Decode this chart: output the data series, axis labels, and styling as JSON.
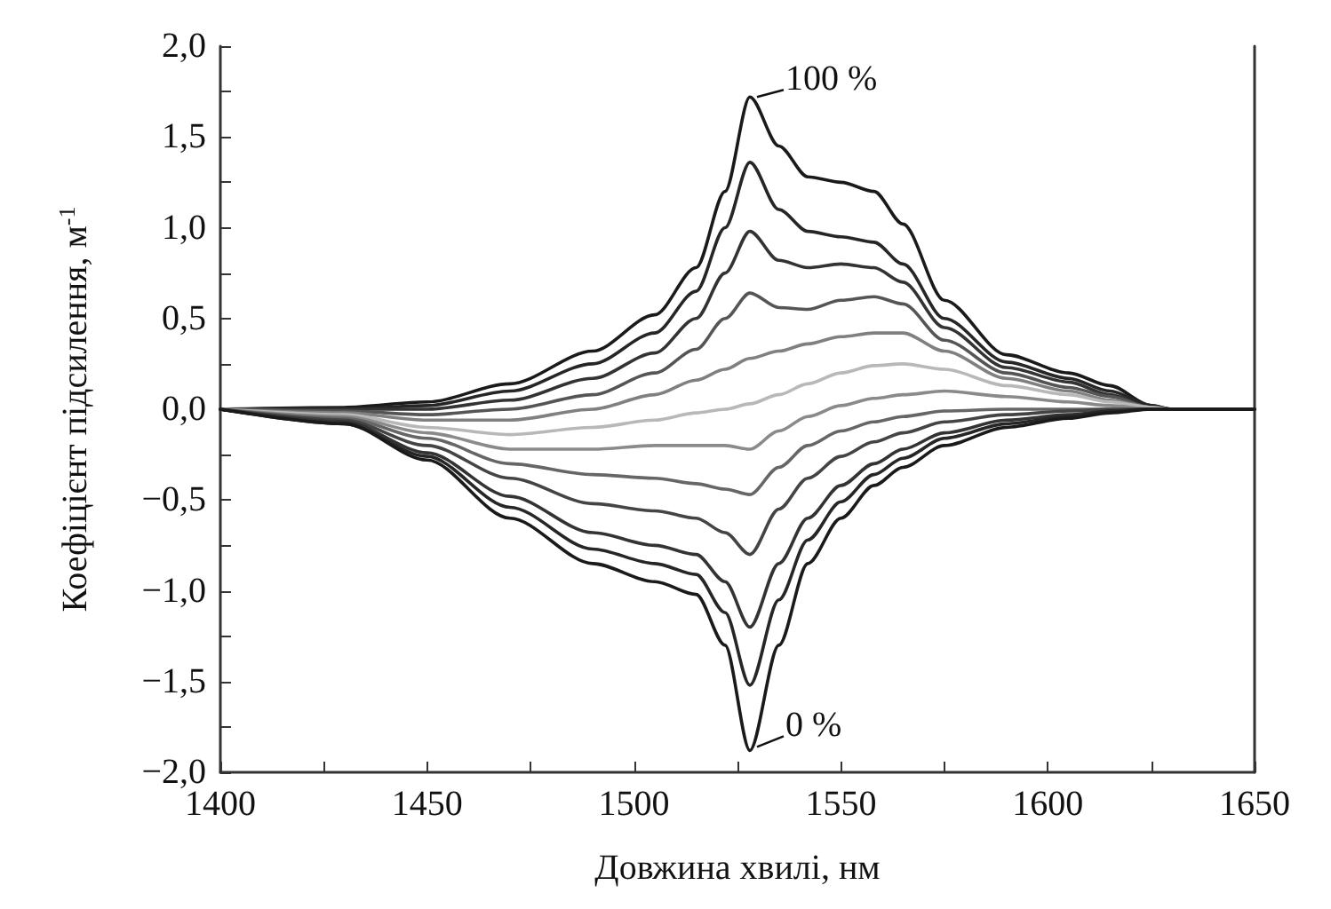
{
  "chart_data": {
    "type": "line",
    "xlabel": "Довжина хвилі, нм",
    "ylabel": "Коефіцієнт підсилення, м$^{-1}$",
    "x": [
      1400,
      1430,
      1450,
      1470,
      1490,
      1505,
      1515,
      1522,
      1528,
      1535,
      1542,
      1550,
      1558,
      1565,
      1575,
      1590,
      1605,
      1615,
      1625,
      1630,
      1650
    ],
    "series": [
      {
        "color": "#1a1a1a",
        "values": [
          0,
          0.01,
          0.04,
          0.14,
          0.32,
          0.52,
          0.78,
          1.2,
          1.72,
          1.45,
          1.28,
          1.25,
          1.2,
          1.02,
          0.6,
          0.3,
          0.2,
          0.13,
          0.02,
          0,
          0
        ]
      },
      {
        "color": "#262626",
        "values": [
          0,
          0,
          0.02,
          0.1,
          0.25,
          0.42,
          0.65,
          1.0,
          1.36,
          1.1,
          0.98,
          0.95,
          0.92,
          0.8,
          0.5,
          0.26,
          0.17,
          0.1,
          0.02,
          0,
          0
        ]
      },
      {
        "color": "#333333",
        "values": [
          0,
          0,
          0,
          0.05,
          0.17,
          0.31,
          0.5,
          0.75,
          0.98,
          0.82,
          0.78,
          0.8,
          0.78,
          0.7,
          0.45,
          0.23,
          0.15,
          0.08,
          0.01,
          0,
          0
        ]
      },
      {
        "color": "#555555",
        "values": [
          0,
          -0.01,
          -0.03,
          0,
          0.08,
          0.2,
          0.33,
          0.5,
          0.64,
          0.56,
          0.55,
          0.6,
          0.62,
          0.58,
          0.38,
          0.2,
          0.12,
          0.07,
          0.01,
          0,
          0
        ]
      },
      {
        "color": "#808080",
        "values": [
          0,
          -0.02,
          -0.06,
          -0.06,
          0,
          0.08,
          0.16,
          0.22,
          0.28,
          0.32,
          0.36,
          0.4,
          0.42,
          0.42,
          0.32,
          0.17,
          0.1,
          0.05,
          0.01,
          0,
          0
        ]
      },
      {
        "color": "#b8b8b8",
        "values": [
          0,
          -0.03,
          -0.1,
          -0.14,
          -0.1,
          -0.06,
          -0.02,
          0.0,
          0.03,
          0.08,
          0.14,
          0.2,
          0.24,
          0.25,
          0.22,
          0.13,
          0.08,
          0.04,
          0.01,
          0,
          0
        ]
      },
      {
        "color": "#8a8a8a",
        "values": [
          0,
          -0.04,
          -0.13,
          -0.22,
          -0.22,
          -0.2,
          -0.2,
          -0.2,
          -0.22,
          -0.12,
          -0.04,
          0.02,
          0.06,
          0.08,
          0.1,
          0.07,
          0.04,
          0.02,
          0,
          0,
          0
        ]
      },
      {
        "color": "#666666",
        "values": [
          0,
          -0.05,
          -0.16,
          -0.3,
          -0.36,
          -0.38,
          -0.41,
          -0.44,
          -0.47,
          -0.32,
          -0.2,
          -0.12,
          -0.07,
          -0.04,
          -0.01,
          0,
          0,
          0,
          0,
          0,
          0
        ]
      },
      {
        "color": "#444444",
        "values": [
          0,
          -0.06,
          -0.2,
          -0.38,
          -0.52,
          -0.56,
          -0.6,
          -0.68,
          -0.8,
          -0.55,
          -0.38,
          -0.26,
          -0.18,
          -0.13,
          -0.07,
          -0.03,
          -0.01,
          0,
          0,
          0,
          0
        ]
      },
      {
        "color": "#333333",
        "values": [
          0,
          -0.07,
          -0.24,
          -0.48,
          -0.68,
          -0.75,
          -0.8,
          -0.95,
          -1.2,
          -0.85,
          -0.6,
          -0.42,
          -0.3,
          -0.22,
          -0.13,
          -0.06,
          -0.03,
          -0.01,
          0,
          0,
          0
        ]
      },
      {
        "color": "#262626",
        "values": [
          0,
          -0.08,
          -0.26,
          -0.54,
          -0.77,
          -0.85,
          -0.91,
          -1.12,
          -1.52,
          -1.05,
          -0.72,
          -0.51,
          -0.36,
          -0.27,
          -0.16,
          -0.08,
          -0.04,
          -0.01,
          0,
          0,
          0
        ]
      },
      {
        "color": "#1a1a1a",
        "values": [
          0,
          -0.08,
          -0.28,
          -0.6,
          -0.85,
          -0.95,
          -1.02,
          -1.3,
          -1.88,
          -1.3,
          -0.85,
          -0.6,
          -0.42,
          -0.32,
          -0.2,
          -0.1,
          -0.05,
          -0.02,
          0,
          0,
          0
        ]
      }
    ],
    "annotations": [
      {
        "text": "100 %",
        "x": 1528,
        "y": 1.72
      },
      {
        "text": "0 %",
        "x": 1528,
        "y": -1.88
      }
    ],
    "xlim": [
      1400,
      1650
    ],
    "xticks": [
      1400,
      1450,
      1500,
      1550,
      1600,
      1650
    ],
    "ylim": [
      -2,
      2
    ],
    "yticks": [
      {
        "value": -2,
        "label": "−2,0"
      },
      {
        "value": -1.5,
        "label": "−1,5"
      },
      {
        "value": -1,
        "label": "−1,0"
      },
      {
        "value": -0.5,
        "label": "−0,5"
      },
      {
        "value": 0,
        "label": "0,0"
      },
      {
        "value": 0.5,
        "label": "0,5"
      },
      {
        "value": 1,
        "label": "1,0"
      },
      {
        "value": 1.5,
        "label": "1,5"
      },
      {
        "value": 2,
        "label": "2,0"
      }
    ],
    "marker": "none",
    "line_style": "solid"
  }
}
